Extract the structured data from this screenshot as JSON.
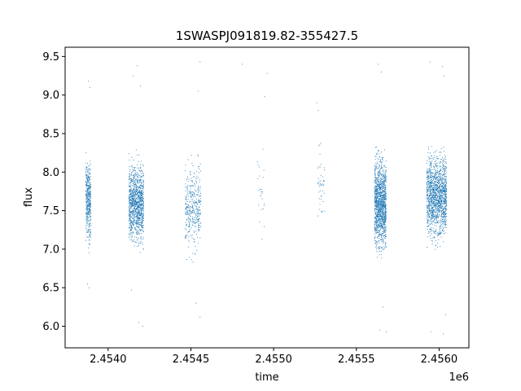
{
  "chart_data": {
    "type": "scatter",
    "title": "1SWASPJ091819.82-355427.5",
    "xlabel": "time",
    "ylabel": "flux",
    "x_offset_label": "1e6",
    "xlim": [
      2453740,
      2456180
    ],
    "ylim": [
      5.72,
      9.62
    ],
    "x_ticks": [
      {
        "value": 2454000,
        "label": "2.4540"
      },
      {
        "value": 2454500,
        "label": "2.4545"
      },
      {
        "value": 2455000,
        "label": "2.4550"
      },
      {
        "value": 2455500,
        "label": "2.4555"
      },
      {
        "value": 2456000,
        "label": "2.4560"
      }
    ],
    "y_ticks": [
      {
        "value": 6.0,
        "label": "6.0"
      },
      {
        "value": 6.5,
        "label": "6.5"
      },
      {
        "value": 7.0,
        "label": "7.0"
      },
      {
        "value": 7.5,
        "label": "7.5"
      },
      {
        "value": 8.0,
        "label": "8.0"
      },
      {
        "value": 8.5,
        "label": "8.5"
      },
      {
        "value": 9.0,
        "label": "9.0"
      },
      {
        "value": 9.5,
        "label": "9.5"
      }
    ],
    "grid": false,
    "marker_color": "#1f77b4",
    "series": [
      {
        "clusters": [
          {
            "x_start": 2453865,
            "x_end": 2453895,
            "y_center": 7.65,
            "y_spread": 0.32,
            "count": 420
          },
          {
            "x_start": 2454125,
            "x_end": 2454215,
            "y_center": 7.6,
            "y_spread": 0.32,
            "count": 1100
          },
          {
            "x_start": 2454465,
            "x_end": 2454560,
            "y_center": 7.55,
            "y_spread": 0.35,
            "count": 380
          },
          {
            "x_start": 2454900,
            "x_end": 2454950,
            "y_center": 7.7,
            "y_spread": 0.4,
            "count": 25
          },
          {
            "x_start": 2455265,
            "x_end": 2455310,
            "y_center": 7.85,
            "y_spread": 0.35,
            "count": 45
          },
          {
            "x_start": 2455610,
            "x_end": 2455680,
            "y_center": 7.6,
            "y_spread": 0.38,
            "count": 1300
          },
          {
            "x_start": 2455925,
            "x_end": 2456045,
            "y_center": 7.7,
            "y_spread": 0.35,
            "count": 1450
          }
        ],
        "outliers": [
          [
            2453880,
            9.18
          ],
          [
            2453890,
            9.1
          ],
          [
            2453875,
            6.55
          ],
          [
            2453885,
            6.5
          ],
          [
            2454150,
            9.25
          ],
          [
            2454175,
            9.38
          ],
          [
            2454195,
            9.12
          ],
          [
            2454185,
            6.05
          ],
          [
            2454210,
            6.0
          ],
          [
            2454140,
            6.47
          ],
          [
            2454555,
            9.43
          ],
          [
            2454545,
            9.05
          ],
          [
            2454530,
            6.3
          ],
          [
            2454555,
            6.12
          ],
          [
            2454810,
            9.4
          ],
          [
            2454960,
            9.28
          ],
          [
            2454945,
            8.98
          ],
          [
            2455260,
            8.9
          ],
          [
            2455270,
            8.8
          ],
          [
            2455630,
            9.4
          ],
          [
            2455650,
            9.3
          ],
          [
            2455640,
            5.95
          ],
          [
            2455680,
            5.93
          ],
          [
            2455660,
            6.25
          ],
          [
            2455945,
            9.43
          ],
          [
            2456020,
            9.37
          ],
          [
            2456030,
            9.25
          ],
          [
            2455950,
            5.93
          ],
          [
            2456025,
            5.9
          ],
          [
            2456040,
            6.15
          ]
        ]
      }
    ]
  }
}
